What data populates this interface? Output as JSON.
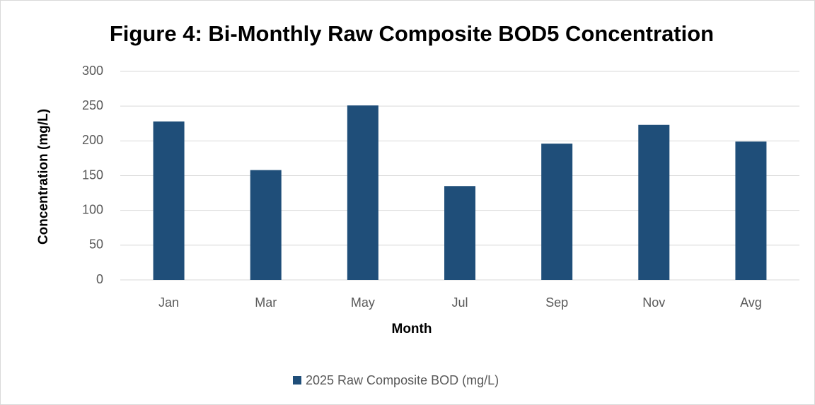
{
  "chart_data": {
    "type": "bar",
    "title": "Figure 4: Bi-Monthly Raw Composite BOD5 Concentration",
    "x_label": "Month",
    "y_label": "Concentration (mg/L)",
    "categories": [
      "Jan",
      "Mar",
      "May",
      "Jul",
      "Sep",
      "Nov",
      "Avg"
    ],
    "series": [
      {
        "name": "2025 Raw Composite BOD (mg/L)",
        "color": "#1f4e79",
        "values": [
          228,
          158,
          251,
          135,
          196,
          223,
          199
        ]
      }
    ],
    "ylim": [
      0,
      300
    ],
    "yticks": [
      0,
      50,
      100,
      150,
      200,
      250,
      300
    ],
    "grid": true,
    "legend": "bottom"
  }
}
